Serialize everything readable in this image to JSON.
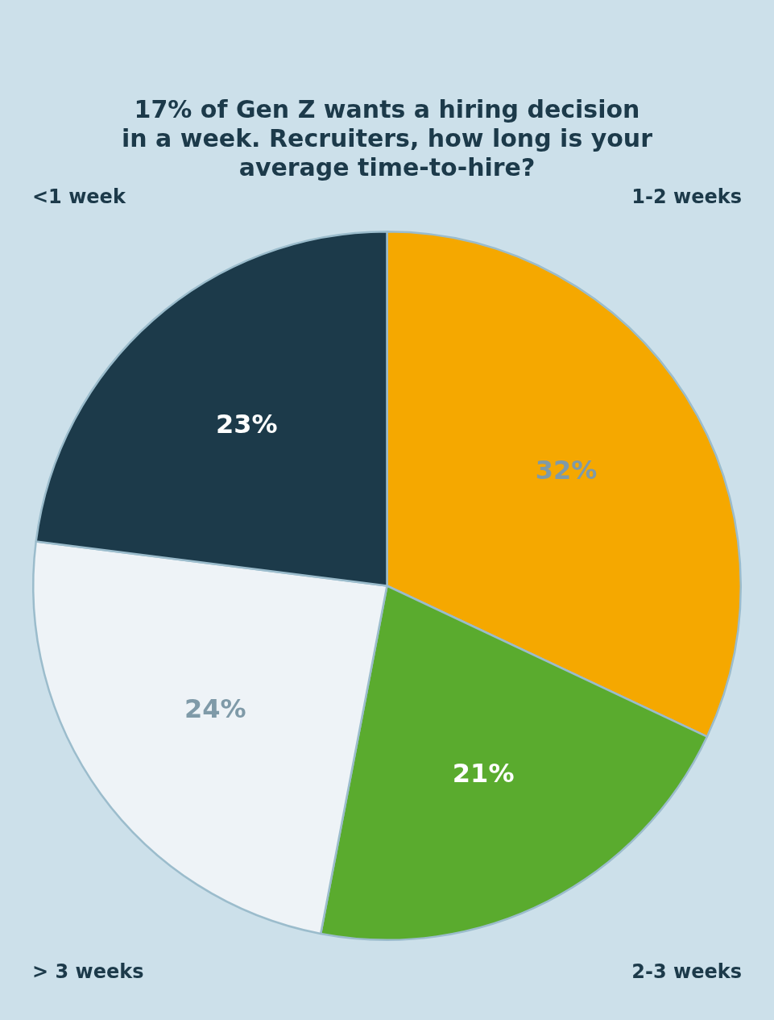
{
  "chart_data": {
    "type": "pie",
    "title": [
      "17% of Gen Z wants a hiring decision",
      "in a week. Recruiters, how long is your",
      "average time-to-hire?"
    ],
    "values": [
      32,
      21,
      24,
      23
    ],
    "value_labels": [
      "32%",
      "21%",
      "24%",
      "23%"
    ],
    "colors": [
      "#f5a800",
      "#5aab2e",
      "#eef3f7",
      "#1c3a4a"
    ],
    "data_labels": true,
    "annotations": [
      "<1 week",
      "1-2 weeks",
      "> 3 weeks",
      "2-3 weeks"
    ]
  }
}
